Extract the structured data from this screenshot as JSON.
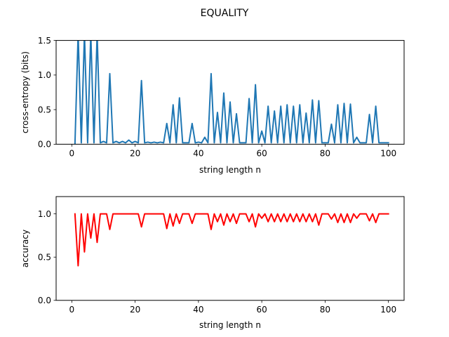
{
  "figure": {
    "title": "EQUALITY"
  },
  "chart_data": [
    {
      "type": "line",
      "xlabel": "string length n",
      "ylabel": "cross-entropy (bits)",
      "xlim": [
        -4.95,
        104.95
      ],
      "ylim": [
        0,
        1.5
      ],
      "xticks": [
        0,
        20,
        40,
        60,
        80,
        100
      ],
      "yticks": [
        0.0,
        0.5,
        1.0,
        1.5
      ],
      "ytick_labels": [
        "0.0",
        "0.5",
        "1.0",
        "1.5"
      ],
      "grid": false,
      "series": [
        {
          "color": "#1f77b4",
          "x": [
            1,
            2,
            3,
            4,
            5,
            6,
            7,
            8,
            9,
            10,
            11,
            12,
            13,
            14,
            15,
            16,
            17,
            18,
            19,
            20,
            21,
            22,
            23,
            24,
            25,
            26,
            27,
            28,
            29,
            30,
            31,
            32,
            33,
            34,
            35,
            36,
            37,
            38,
            39,
            40,
            41,
            42,
            43,
            44,
            45,
            46,
            47,
            48,
            49,
            50,
            51,
            52,
            53,
            54,
            55,
            56,
            57,
            58,
            59,
            60,
            61,
            62,
            63,
            64,
            65,
            66,
            67,
            68,
            69,
            70,
            71,
            72,
            73,
            74,
            75,
            76,
            77,
            78,
            79,
            80,
            81,
            82,
            83,
            84,
            85,
            86,
            87,
            88,
            89,
            90,
            91,
            92,
            93,
            94,
            95,
            96,
            97,
            98,
            99,
            100
          ],
          "values": [
            0.0,
            1.6,
            0.02,
            1.6,
            0.02,
            1.6,
            0.02,
            1.6,
            0.02,
            0.04,
            0.02,
            1.02,
            0.02,
            0.04,
            0.02,
            0.04,
            0.02,
            0.06,
            0.02,
            0.04,
            0.02,
            0.92,
            0.02,
            0.03,
            0.02,
            0.03,
            0.02,
            0.03,
            0.02,
            0.3,
            0.02,
            0.57,
            0.02,
            0.67,
            0.02,
            0.02,
            0.02,
            0.3,
            0.02,
            0.03,
            0.02,
            0.1,
            0.02,
            1.02,
            0.02,
            0.46,
            0.02,
            0.74,
            0.02,
            0.61,
            0.02,
            0.44,
            0.02,
            0.02,
            0.02,
            0.66,
            0.02,
            0.86,
            0.02,
            0.19,
            0.02,
            0.55,
            0.02,
            0.48,
            0.02,
            0.55,
            0.02,
            0.57,
            0.02,
            0.55,
            0.02,
            0.57,
            0.02,
            0.45,
            0.02,
            0.64,
            0.02,
            0.63,
            0.02,
            0.02,
            0.02,
            0.29,
            0.02,
            0.57,
            0.02,
            0.59,
            0.02,
            0.58,
            0.02,
            0.1,
            0.02,
            0.02,
            0.02,
            0.43,
            0.02,
            0.55,
            0.02,
            0.02,
            0.02,
            0.02
          ]
        }
      ]
    },
    {
      "type": "line",
      "xlabel": "string length n",
      "ylabel": "accuracy",
      "xlim": [
        -4.95,
        104.95
      ],
      "ylim": [
        0,
        1.2
      ],
      "xticks": [
        0,
        20,
        40,
        60,
        80,
        100
      ],
      "yticks": [
        0.0,
        0.5,
        1.0
      ],
      "ytick_labels": [
        "0.0",
        "0.5",
        "1.0"
      ],
      "grid": false,
      "series": [
        {
          "color": "#ff0000",
          "x": [
            1,
            2,
            3,
            4,
            5,
            6,
            7,
            8,
            9,
            10,
            11,
            12,
            13,
            14,
            15,
            16,
            17,
            18,
            19,
            20,
            21,
            22,
            23,
            24,
            25,
            26,
            27,
            28,
            29,
            30,
            31,
            32,
            33,
            34,
            35,
            36,
            37,
            38,
            39,
            40,
            41,
            42,
            43,
            44,
            45,
            46,
            47,
            48,
            49,
            50,
            51,
            52,
            53,
            54,
            55,
            56,
            57,
            58,
            59,
            60,
            61,
            62,
            63,
            64,
            65,
            66,
            67,
            68,
            69,
            70,
            71,
            72,
            73,
            74,
            75,
            76,
            77,
            78,
            79,
            80,
            81,
            82,
            83,
            84,
            85,
            86,
            87,
            88,
            89,
            90,
            91,
            92,
            93,
            94,
            95,
            96,
            97,
            98,
            99,
            100
          ],
          "values": [
            1.0,
            0.4,
            1.0,
            0.56,
            1.0,
            0.72,
            1.0,
            0.67,
            1.0,
            1.0,
            1.0,
            0.82,
            1.0,
            1.0,
            1.0,
            1.0,
            1.0,
            1.0,
            1.0,
            1.0,
            1.0,
            0.85,
            1.0,
            1.0,
            1.0,
            1.0,
            1.0,
            1.0,
            1.0,
            0.83,
            1.0,
            0.86,
            1.0,
            0.89,
            1.0,
            1.0,
            1.0,
            0.89,
            1.0,
            1.0,
            1.0,
            1.0,
            1.0,
            0.82,
            1.0,
            0.91,
            1.0,
            0.87,
            1.0,
            0.91,
            1.0,
            0.89,
            1.0,
            1.0,
            1.0,
            0.91,
            1.0,
            0.85,
            1.0,
            0.95,
            1.0,
            0.91,
            1.0,
            0.91,
            1.0,
            0.91,
            1.0,
            0.91,
            1.0,
            0.91,
            1.0,
            0.91,
            1.0,
            0.91,
            1.0,
            0.91,
            1.0,
            0.87,
            1.0,
            1.0,
            1.0,
            0.94,
            1.0,
            0.9,
            1.0,
            0.9,
            1.0,
            0.9,
            1.0,
            0.95,
            1.0,
            1.0,
            1.0,
            0.92,
            1.0,
            0.9,
            1.0,
            1.0,
            1.0,
            1.0
          ]
        }
      ]
    }
  ]
}
